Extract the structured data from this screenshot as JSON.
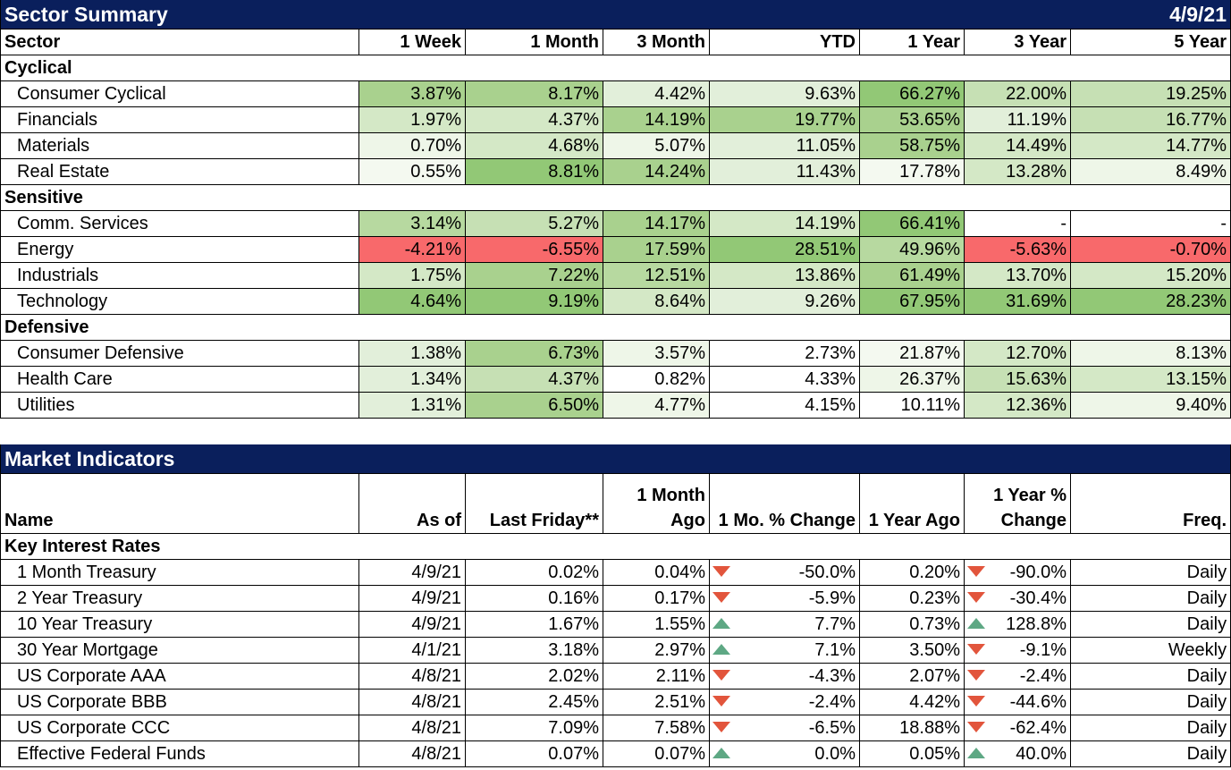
{
  "sector_summary": {
    "title": "Sector Summary",
    "date": "4/9/21",
    "headers": [
      "Sector",
      "1 Week",
      "1 Month",
      "3 Month",
      "YTD",
      "1 Year",
      "3 Year",
      "5 Year"
    ],
    "groups": [
      {
        "name": "Cyclical",
        "rows": [
          {
            "name": "Consumer Cyclical",
            "values": [
              "3.87%",
              "8.17%",
              "4.42%",
              "9.63%",
              "66.27%",
              "22.00%",
              "19.25%"
            ],
            "colors": [
              "#a9d18e",
              "#a9d18e",
              "#e2efda",
              "#e2efda",
              "#92c876",
              "#c6e0b4",
              "#c6e0b4"
            ]
          },
          {
            "name": "Financials",
            "values": [
              "1.97%",
              "4.37%",
              "14.19%",
              "19.77%",
              "53.65%",
              "11.19%",
              "16.77%"
            ],
            "colors": [
              "#d4e8c6",
              "#d4e8c6",
              "#a9d18e",
              "#a9d18e",
              "#a9d18e",
              "#e2efda",
              "#c6e0b4"
            ]
          },
          {
            "name": "Materials",
            "values": [
              "0.70%",
              "4.68%",
              "5.07%",
              "11.05%",
              "58.75%",
              "14.49%",
              "14.77%"
            ],
            "colors": [
              "#eef6e8",
              "#d4e8c6",
              "#eef6e8",
              "#e2efda",
              "#a9d18e",
              "#d4e8c6",
              "#d4e8c6"
            ]
          },
          {
            "name": "Real Estate",
            "values": [
              "0.55%",
              "8.81%",
              "14.24%",
              "11.43%",
              "17.78%",
              "13.28%",
              "8.49%"
            ],
            "colors": [
              "#f4f9f0",
              "#92c876",
              "#a9d18e",
              "#e2efda",
              "#f4f9f0",
              "#d4e8c6",
              "#eef6e8"
            ]
          }
        ]
      },
      {
        "name": "Sensitive",
        "rows": [
          {
            "name": "Comm. Services",
            "values": [
              "3.14%",
              "5.27%",
              "14.17%",
              "14.19%",
              "66.41%",
              "-",
              "-"
            ],
            "colors": [
              "#b7d9a0",
              "#c6e0b4",
              "#a9d18e",
              "#d4e8c6",
              "#92c876",
              "#ffffff",
              "#ffffff"
            ]
          },
          {
            "name": "Energy",
            "values": [
              "-4.21%",
              "-6.55%",
              "17.59%",
              "28.51%",
              "49.96%",
              "-5.63%",
              "-0.70%"
            ],
            "colors": [
              "#f8696b",
              "#f8696b",
              "#a9d18e",
              "#92c876",
              "#b7d9a0",
              "#f8696b",
              "#f8696b"
            ]
          },
          {
            "name": "Industrials",
            "values": [
              "1.75%",
              "7.22%",
              "12.51%",
              "13.86%",
              "61.49%",
              "13.70%",
              "15.20%"
            ],
            "colors": [
              "#d4e8c6",
              "#a9d18e",
              "#b7d9a0",
              "#d4e8c6",
              "#a9d18e",
              "#d4e8c6",
              "#d4e8c6"
            ]
          },
          {
            "name": "Technology",
            "values": [
              "4.64%",
              "9.19%",
              "8.64%",
              "9.26%",
              "67.95%",
              "31.69%",
              "28.23%"
            ],
            "colors": [
              "#92c876",
              "#92c876",
              "#d4e8c6",
              "#e2efda",
              "#92c876",
              "#92c876",
              "#92c876"
            ]
          }
        ]
      },
      {
        "name": "Defensive",
        "rows": [
          {
            "name": "Consumer Defensive",
            "values": [
              "1.38%",
              "6.73%",
              "3.57%",
              "2.73%",
              "21.87%",
              "12.70%",
              "8.13%"
            ],
            "colors": [
              "#e2efda",
              "#a9d18e",
              "#eef6e8",
              "#ffffff",
              "#f4f9f0",
              "#d4e8c6",
              "#eef6e8"
            ]
          },
          {
            "name": "Health Care",
            "values": [
              "1.34%",
              "4.37%",
              "0.82%",
              "4.33%",
              "26.37%",
              "15.63%",
              "13.15%"
            ],
            "colors": [
              "#e2efda",
              "#c6e0b4",
              "#ffffff",
              "#ffffff",
              "#eef6e8",
              "#c6e0b4",
              "#d4e8c6"
            ]
          },
          {
            "name": "Utilities",
            "values": [
              "1.31%",
              "6.50%",
              "4.77%",
              "4.15%",
              "10.11%",
              "12.36%",
              "9.40%"
            ],
            "colors": [
              "#e2efda",
              "#a9d18e",
              "#eef6e8",
              "#ffffff",
              "#ffffff",
              "#d4e8c6",
              "#eef6e8"
            ]
          }
        ]
      }
    ]
  },
  "market_indicators": {
    "title": "Market Indicators",
    "headers": [
      "Name",
      "As of",
      "Last Friday**",
      "1 Month Ago",
      "1 Mo. % Change",
      "1 Year Ago",
      "1 Year % Change",
      "Freq."
    ],
    "group": "Key Interest Rates",
    "rows": [
      {
        "name": "1 Month Treasury",
        "as_of": "4/9/21",
        "last_friday": "0.02%",
        "month_ago": "0.04%",
        "mo_dir": "down",
        "mo_change": "-50.0%",
        "year_ago": "0.20%",
        "yr_dir": "down",
        "yr_change": "-90.0%",
        "freq": "Daily"
      },
      {
        "name": "2 Year Treasury",
        "as_of": "4/9/21",
        "last_friday": "0.16%",
        "month_ago": "0.17%",
        "mo_dir": "down",
        "mo_change": "-5.9%",
        "year_ago": "0.23%",
        "yr_dir": "down",
        "yr_change": "-30.4%",
        "freq": "Daily"
      },
      {
        "name": "10 Year Treasury",
        "as_of": "4/9/21",
        "last_friday": "1.67%",
        "month_ago": "1.55%",
        "mo_dir": "up",
        "mo_change": "7.7%",
        "year_ago": "0.73%",
        "yr_dir": "up",
        "yr_change": "128.8%",
        "freq": "Daily"
      },
      {
        "name": "30 Year Mortgage",
        "as_of": "4/1/21",
        "last_friday": "3.18%",
        "month_ago": "2.97%",
        "mo_dir": "up",
        "mo_change": "7.1%",
        "year_ago": "3.50%",
        "yr_dir": "down",
        "yr_change": "-9.1%",
        "freq": "Weekly"
      },
      {
        "name": "US Corporate AAA",
        "as_of": "4/8/21",
        "last_friday": "2.02%",
        "month_ago": "2.11%",
        "mo_dir": "down",
        "mo_change": "-4.3%",
        "year_ago": "2.07%",
        "yr_dir": "down",
        "yr_change": "-2.4%",
        "freq": "Daily"
      },
      {
        "name": "US Corporate BBB",
        "as_of": "4/8/21",
        "last_friday": "2.45%",
        "month_ago": "2.51%",
        "mo_dir": "down",
        "mo_change": "-2.4%",
        "year_ago": "4.42%",
        "yr_dir": "down",
        "yr_change": "-44.6%",
        "freq": "Daily"
      },
      {
        "name": "US Corporate CCC",
        "as_of": "4/8/21",
        "last_friday": "7.09%",
        "month_ago": "7.58%",
        "mo_dir": "down",
        "mo_change": "-6.5%",
        "year_ago": "18.88%",
        "yr_dir": "down",
        "yr_change": "-62.4%",
        "freq": "Daily"
      },
      {
        "name": "Effective Federal Funds",
        "as_of": "4/8/21",
        "last_friday": "0.07%",
        "month_ago": "0.07%",
        "mo_dir": "up",
        "mo_change": "0.0%",
        "year_ago": "0.05%",
        "yr_dir": "up",
        "yr_change": "40.0%",
        "freq": "Daily"
      }
    ]
  }
}
